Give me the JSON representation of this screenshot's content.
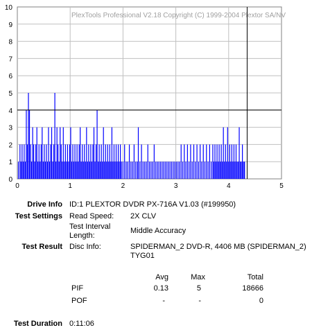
{
  "chart_data": {
    "type": "bar",
    "title": "PlexTools Professional V2.18 Copyright (C) 1999-2004 Plextor SA/NV",
    "xlabel": "",
    "ylabel": "",
    "xlim": [
      0,
      5
    ],
    "ylim": [
      0,
      10
    ],
    "x_ticks": [
      "0",
      "1",
      "2",
      "3",
      "4",
      "5"
    ],
    "y_ticks": [
      "0",
      "1",
      "2",
      "3",
      "4",
      "5",
      "6",
      "7",
      "8",
      "9",
      "10"
    ],
    "grid": true,
    "bar_color": "#0000ff",
    "reference_lines": {
      "y": 4,
      "x": 4.35
    },
    "data_end_x": 4.3,
    "points": [
      [
        0.02,
        1
      ],
      [
        0.05,
        2
      ],
      [
        0.07,
        1
      ],
      [
        0.09,
        2
      ],
      [
        0.11,
        1
      ],
      [
        0.13,
        2
      ],
      [
        0.15,
        1
      ],
      [
        0.17,
        4
      ],
      [
        0.19,
        2
      ],
      [
        0.21,
        5
      ],
      [
        0.23,
        4
      ],
      [
        0.25,
        2
      ],
      [
        0.27,
        1
      ],
      [
        0.29,
        3
      ],
      [
        0.31,
        2
      ],
      [
        0.33,
        1
      ],
      [
        0.35,
        2
      ],
      [
        0.37,
        3
      ],
      [
        0.39,
        1
      ],
      [
        0.41,
        2
      ],
      [
        0.43,
        1
      ],
      [
        0.45,
        2
      ],
      [
        0.47,
        3
      ],
      [
        0.49,
        1
      ],
      [
        0.51,
        2
      ],
      [
        0.53,
        1
      ],
      [
        0.55,
        2
      ],
      [
        0.57,
        1
      ],
      [
        0.59,
        3
      ],
      [
        0.61,
        1
      ],
      [
        0.63,
        2
      ],
      [
        0.65,
        3
      ],
      [
        0.67,
        1
      ],
      [
        0.69,
        2
      ],
      [
        0.71,
        5
      ],
      [
        0.73,
        1
      ],
      [
        0.75,
        3
      ],
      [
        0.77,
        2
      ],
      [
        0.79,
        1
      ],
      [
        0.81,
        3
      ],
      [
        0.83,
        2
      ],
      [
        0.85,
        1
      ],
      [
        0.87,
        3
      ],
      [
        0.89,
        1
      ],
      [
        0.91,
        2
      ],
      [
        0.93,
        1
      ],
      [
        0.95,
        2
      ],
      [
        0.97,
        1
      ],
      [
        0.99,
        2
      ],
      [
        1.01,
        3
      ],
      [
        1.03,
        1
      ],
      [
        1.05,
        2
      ],
      [
        1.07,
        1
      ],
      [
        1.09,
        2
      ],
      [
        1.11,
        1
      ],
      [
        1.13,
        2
      ],
      [
        1.15,
        1
      ],
      [
        1.17,
        2
      ],
      [
        1.19,
        3
      ],
      [
        1.21,
        1
      ],
      [
        1.23,
        2
      ],
      [
        1.25,
        1
      ],
      [
        1.27,
        2
      ],
      [
        1.29,
        1
      ],
      [
        1.31,
        3
      ],
      [
        1.33,
        1
      ],
      [
        1.35,
        2
      ],
      [
        1.37,
        1
      ],
      [
        1.39,
        2
      ],
      [
        1.41,
        1
      ],
      [
        1.43,
        2
      ],
      [
        1.45,
        3
      ],
      [
        1.47,
        1
      ],
      [
        1.49,
        2
      ],
      [
        1.51,
        4
      ],
      [
        1.53,
        1
      ],
      [
        1.55,
        2
      ],
      [
        1.57,
        1
      ],
      [
        1.59,
        2
      ],
      [
        1.61,
        1
      ],
      [
        1.63,
        3
      ],
      [
        1.65,
        1
      ],
      [
        1.67,
        2
      ],
      [
        1.69,
        1
      ],
      [
        1.71,
        2
      ],
      [
        1.73,
        1
      ],
      [
        1.75,
        2
      ],
      [
        1.77,
        1
      ],
      [
        1.79,
        3
      ],
      [
        1.81,
        1
      ],
      [
        1.83,
        2
      ],
      [
        1.85,
        1
      ],
      [
        1.87,
        2
      ],
      [
        1.89,
        1
      ],
      [
        1.91,
        2
      ],
      [
        1.93,
        1
      ],
      [
        1.95,
        2
      ],
      [
        1.97,
        1
      ],
      [
        2.0,
        1
      ],
      [
        2.03,
        2
      ],
      [
        2.06,
        1
      ],
      [
        2.09,
        1
      ],
      [
        2.12,
        2
      ],
      [
        2.15,
        1
      ],
      [
        2.18,
        1
      ],
      [
        2.21,
        2
      ],
      [
        2.24,
        1
      ],
      [
        2.27,
        1
      ],
      [
        2.29,
        3
      ],
      [
        2.32,
        1
      ],
      [
        2.35,
        2
      ],
      [
        2.38,
        1
      ],
      [
        2.41,
        1
      ],
      [
        2.44,
        1
      ],
      [
        2.47,
        2
      ],
      [
        2.5,
        1
      ],
      [
        2.53,
        1
      ],
      [
        2.56,
        1
      ],
      [
        2.59,
        2
      ],
      [
        2.62,
        1
      ],
      [
        2.65,
        1
      ],
      [
        2.68,
        1
      ],
      [
        2.71,
        1
      ],
      [
        2.74,
        1
      ],
      [
        2.77,
        1
      ],
      [
        2.8,
        1
      ],
      [
        2.83,
        1
      ],
      [
        2.86,
        1
      ],
      [
        2.89,
        1
      ],
      [
        2.92,
        1
      ],
      [
        2.95,
        1
      ],
      [
        2.98,
        1
      ],
      [
        3.01,
        1
      ],
      [
        3.04,
        1
      ],
      [
        3.07,
        1
      ],
      [
        3.1,
        2
      ],
      [
        3.13,
        1
      ],
      [
        3.16,
        2
      ],
      [
        3.19,
        1
      ],
      [
        3.22,
        2
      ],
      [
        3.25,
        1
      ],
      [
        3.28,
        2
      ],
      [
        3.31,
        1
      ],
      [
        3.34,
        2
      ],
      [
        3.37,
        1
      ],
      [
        3.4,
        2
      ],
      [
        3.43,
        1
      ],
      [
        3.46,
        2
      ],
      [
        3.49,
        1
      ],
      [
        3.52,
        2
      ],
      [
        3.55,
        1
      ],
      [
        3.58,
        2
      ],
      [
        3.61,
        1
      ],
      [
        3.64,
        2
      ],
      [
        3.67,
        1
      ],
      [
        3.7,
        2
      ],
      [
        3.72,
        1
      ],
      [
        3.74,
        2
      ],
      [
        3.76,
        1
      ],
      [
        3.78,
        2
      ],
      [
        3.8,
        1
      ],
      [
        3.82,
        2
      ],
      [
        3.84,
        1
      ],
      [
        3.86,
        2
      ],
      [
        3.88,
        1
      ],
      [
        3.9,
        3
      ],
      [
        3.92,
        1
      ],
      [
        3.94,
        2
      ],
      [
        3.96,
        1
      ],
      [
        3.98,
        3
      ],
      [
        4.0,
        1
      ],
      [
        4.02,
        2
      ],
      [
        4.04,
        1
      ],
      [
        4.06,
        2
      ],
      [
        4.08,
        1
      ],
      [
        4.1,
        2
      ],
      [
        4.12,
        1
      ],
      [
        4.14,
        2
      ],
      [
        4.16,
        1
      ],
      [
        4.18,
        1
      ],
      [
        4.2,
        3
      ],
      [
        4.22,
        1
      ],
      [
        4.24,
        1
      ],
      [
        4.26,
        2
      ],
      [
        4.28,
        1
      ],
      [
        4.3,
        1
      ]
    ]
  },
  "info": {
    "drive_info_label": "Drive Info",
    "drive_info_value": "ID:1 PLEXTOR DVDR PX-716A V1.03 (#199950)",
    "test_settings_label": "Test Settings",
    "read_speed_label": "Read Speed:",
    "read_speed_value": "2X CLV",
    "test_interval_label_line1": "Test Interval",
    "test_interval_label_line2": "Length:",
    "test_interval_value": "Middle Accuracy",
    "test_result_label": "Test Result",
    "disc_info_label": "Disc Info:",
    "disc_info_line1": "SPIDERMAN_2 DVD-R, 4406 MB (SPIDERMAN_2)",
    "disc_info_line2": "TYG01",
    "col_avg": "Avg",
    "col_max": "Max",
    "col_total": "Total",
    "pif_label": "PIF",
    "pif_avg": "0.13",
    "pif_max": "5",
    "pif_total": "18666",
    "pof_label": "POF",
    "pof_avg": "-",
    "pof_max": "-",
    "pof_total": "0",
    "test_duration_label": "Test Duration",
    "test_duration_value": "0:11:06"
  }
}
